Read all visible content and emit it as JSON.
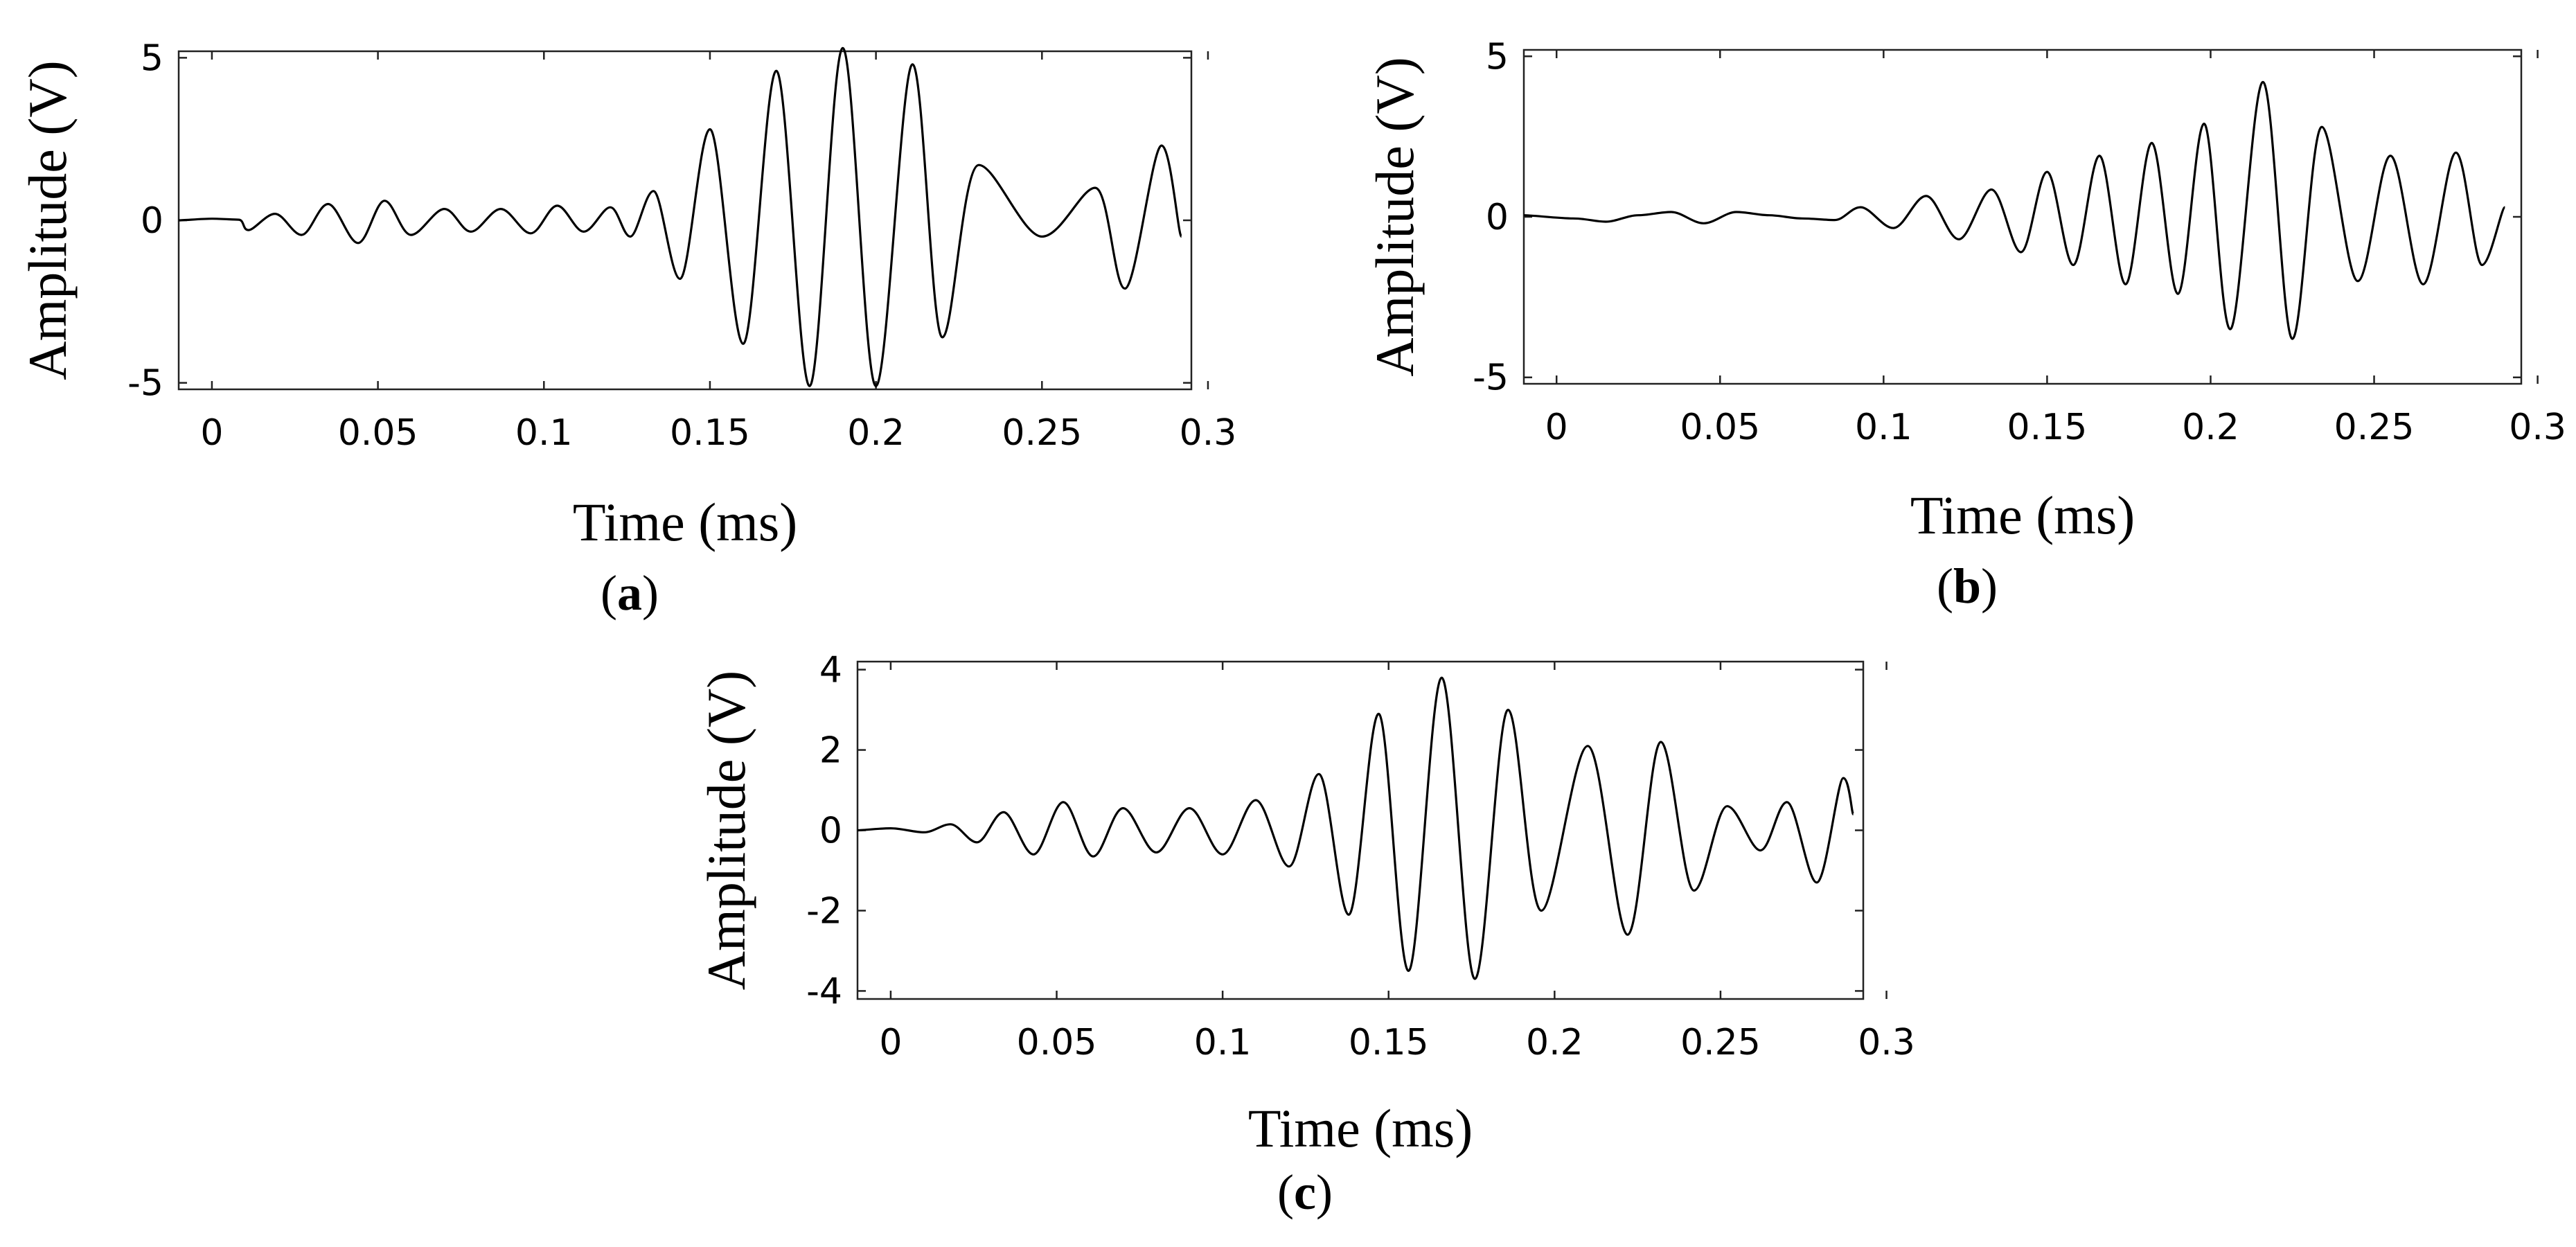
{
  "chart_data": [
    {
      "type": "line",
      "panel_label": "a",
      "title": "",
      "xlabel": "Time (ms)",
      "ylabel": "Amplitude (V)",
      "xlim": [
        -0.01,
        0.295
      ],
      "ylim": [
        -5.2,
        5.2
      ],
      "xticks": [
        0,
        0.05,
        0.1,
        0.15,
        0.2,
        0.25,
        0.3
      ],
      "xtick_labels": [
        "0",
        "0.05",
        "0.1",
        "0.15",
        "0.2",
        "0.25",
        "0.3"
      ],
      "yticks": [
        -5,
        0,
        5
      ],
      "ytick_labels": [
        "-5",
        "0",
        "5"
      ],
      "grid": false,
      "series": [
        {
          "name": "waveform",
          "color": "#000000",
          "x": [
            -0.01,
            0.0,
            0.008,
            0.011,
            0.019,
            0.027,
            0.035,
            0.044,
            0.052,
            0.06,
            0.07,
            0.078,
            0.087,
            0.096,
            0.104,
            0.112,
            0.12,
            0.126,
            0.133,
            0.141,
            0.15,
            0.16,
            0.17,
            0.18,
            0.19,
            0.2,
            0.211,
            0.22,
            0.231,
            0.25,
            0.266,
            0.275,
            0.286,
            0.292
          ],
          "y": [
            0.0,
            0.05,
            0.02,
            -0.3,
            0.2,
            -0.45,
            0.5,
            -0.7,
            0.6,
            -0.45,
            0.35,
            -0.35,
            0.35,
            -0.4,
            0.45,
            -0.35,
            0.4,
            -0.5,
            0.9,
            -1.8,
            2.8,
            -3.8,
            4.6,
            -5.1,
            5.3,
            -5.1,
            4.8,
            -3.6,
            1.7,
            -0.5,
            1.0,
            -2.1,
            2.3,
            -0.5
          ]
        }
      ]
    },
    {
      "type": "line",
      "panel_label": "b",
      "title": "",
      "xlabel": "Time (ms)",
      "ylabel": "Amplitude (V)",
      "xlim": [
        -0.01,
        0.295
      ],
      "ylim": [
        -5.2,
        5.2
      ],
      "xticks": [
        0,
        0.05,
        0.1,
        0.15,
        0.2,
        0.25,
        0.3
      ],
      "xtick_labels": [
        "0",
        "0.05",
        "0.1",
        "0.15",
        "0.2",
        "0.25",
        "0.3"
      ],
      "yticks": [
        -5,
        0,
        5
      ],
      "ytick_labels": [
        "-5",
        "0",
        "5"
      ],
      "grid": false,
      "series": [
        {
          "name": "waveform",
          "color": "#000000",
          "x": [
            -0.01,
            0.005,
            0.015,
            0.025,
            0.035,
            0.045,
            0.055,
            0.065,
            0.075,
            0.085,
            0.093,
            0.103,
            0.113,
            0.123,
            0.133,
            0.142,
            0.15,
            0.158,
            0.166,
            0.174,
            0.182,
            0.19,
            0.198,
            0.206,
            0.216,
            0.225,
            0.234,
            0.245,
            0.255,
            0.265,
            0.275,
            0.283,
            0.29
          ],
          "y": [
            0.05,
            -0.05,
            -0.15,
            0.05,
            0.15,
            -0.2,
            0.15,
            0.05,
            -0.05,
            -0.1,
            0.3,
            -0.35,
            0.65,
            -0.7,
            0.85,
            -1.1,
            1.4,
            -1.5,
            1.9,
            -2.1,
            2.3,
            -2.4,
            2.9,
            -3.5,
            4.2,
            -3.8,
            2.8,
            -2.0,
            1.9,
            -2.1,
            2.0,
            -1.5,
            0.3
          ]
        }
      ]
    },
    {
      "type": "line",
      "panel_label": "c",
      "title": "",
      "xlabel": "Time (ms)",
      "ylabel": "Amplitude (V)",
      "xlim": [
        -0.01,
        0.293
      ],
      "ylim": [
        -4.2,
        4.2
      ],
      "xticks": [
        0,
        0.05,
        0.1,
        0.15,
        0.2,
        0.25,
        0.3
      ],
      "xtick_labels": [
        "0",
        "0.05",
        "0.1",
        "0.15",
        "0.2",
        "0.25",
        "0.3"
      ],
      "yticks": [
        -4,
        -2,
        0,
        2,
        4
      ],
      "ytick_labels": [
        "-4",
        "-2",
        "0",
        "2",
        "4"
      ],
      "grid": false,
      "series": [
        {
          "name": "waveform",
          "color": "#000000",
          "x": [
            -0.01,
            0.0,
            0.01,
            0.018,
            0.026,
            0.034,
            0.043,
            0.052,
            0.061,
            0.07,
            0.08,
            0.09,
            0.1,
            0.11,
            0.12,
            0.129,
            0.138,
            0.147,
            0.156,
            0.166,
            0.176,
            0.186,
            0.196,
            0.21,
            0.222,
            0.232,
            0.242,
            0.252,
            0.262,
            0.27,
            0.279,
            0.287,
            0.29
          ],
          "y": [
            0.0,
            0.05,
            -0.05,
            0.15,
            -0.3,
            0.45,
            -0.6,
            0.7,
            -0.65,
            0.55,
            -0.55,
            0.55,
            -0.6,
            0.75,
            -0.9,
            1.4,
            -2.1,
            2.9,
            -3.5,
            3.8,
            -3.7,
            3.0,
            -2.0,
            2.1,
            -2.6,
            2.2,
            -1.5,
            0.6,
            -0.5,
            0.7,
            -1.3,
            1.3,
            0.4
          ]
        }
      ]
    }
  ]
}
